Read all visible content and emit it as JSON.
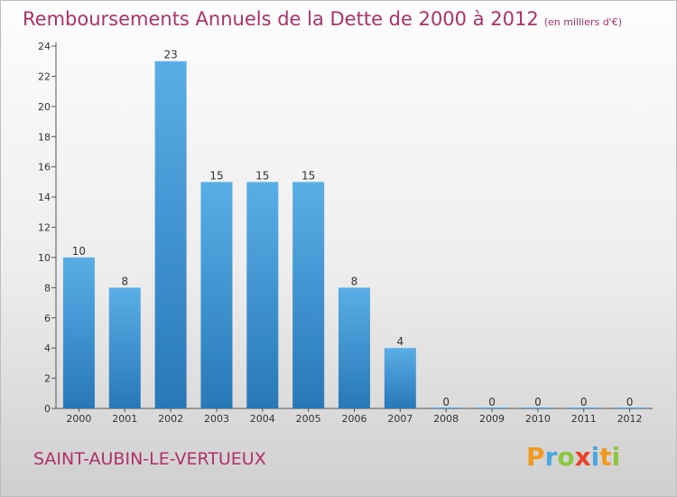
{
  "chart_data": {
    "type": "bar",
    "title": "Remboursements Annuels de la Dette de 2000 à 2012",
    "unit_note": "(en milliers d'€)",
    "categories": [
      "2000",
      "2001",
      "2002",
      "2003",
      "2004",
      "2005",
      "2006",
      "2007",
      "2008",
      "2009",
      "2010",
      "2011",
      "2012"
    ],
    "values": [
      10,
      8,
      23,
      15,
      15,
      15,
      8,
      4,
      0,
      0,
      0,
      0,
      0
    ],
    "data_labels": [
      "10",
      "8",
      "23",
      "15",
      "15",
      "15",
      "8",
      "4",
      "0",
      "0",
      "0",
      "0",
      "0"
    ],
    "y_ticks": [
      "0",
      "2",
      "4",
      "6",
      "8",
      "10",
      "12",
      "14",
      "16",
      "18",
      "20",
      "22",
      "24"
    ],
    "ylim": [
      0,
      24
    ],
    "xlabel": "",
    "ylabel": "",
    "grid": false,
    "bar_color": "#4a9fdc"
  },
  "commune": "SAINT-AUBIN-LE-VERTUEUX",
  "logo": {
    "p": "P",
    "r": "r",
    "o": "o",
    "x": "x",
    "i": "i",
    "t": "t",
    "i2": "i"
  }
}
